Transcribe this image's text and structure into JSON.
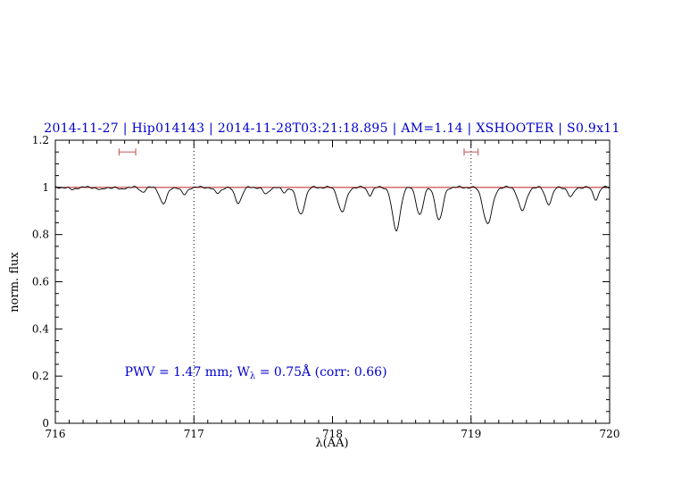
{
  "chart_data": {
    "type": "line",
    "title": "2014-11-27 | Hip014143 | 2014-11-28T03:21:18.895 | AM=1.14 | XSHOOTER | S0.9x11",
    "title_color": "#0000cd",
    "xlabel": "λ(AA)",
    "ylabel": "norm. flux",
    "xlim": [
      716,
      720
    ],
    "ylim": [
      0,
      1.2
    ],
    "x_ticks": [
      716,
      717,
      718,
      719,
      720
    ],
    "y_ticks": [
      0,
      0.2,
      0.4,
      0.6,
      0.8,
      1,
      1.2
    ],
    "x_minor_step": 0.1,
    "y_minor_step": 0.05,
    "grid": "off",
    "dotted_vlines": [
      717,
      719
    ],
    "continuum": {
      "y": 1.0,
      "color": "#bb2222"
    },
    "marker_color": "#cc6666",
    "band_markers": [
      {
        "x_center": 716.52,
        "half_width": 0.06,
        "y": 1.15
      },
      {
        "x_center": 719.0,
        "half_width": 0.05,
        "y": 1.15
      }
    ],
    "annotation": {
      "prefix": "PWV = 1.47 mm; W",
      "subscript": "λ",
      "suffix": " = 0.75Å (corr: 0.66)",
      "color": "#0000cd",
      "x": 716.5,
      "y": 0.2
    },
    "spectrum": {
      "color": "#000000",
      "continuum_level": 1.0,
      "sample_step": 0.008,
      "noise_amplitude": 0.003,
      "absorption_lines": [
        {
          "center": 716.12,
          "depth": 0.01,
          "sigma": 0.02
        },
        {
          "center": 716.33,
          "depth": 0.012,
          "sigma": 0.02
        },
        {
          "center": 716.47,
          "depth": 0.01,
          "sigma": 0.018
        },
        {
          "center": 716.63,
          "depth": 0.018,
          "sigma": 0.02
        },
        {
          "center": 716.78,
          "depth": 0.07,
          "sigma": 0.025
        },
        {
          "center": 716.93,
          "depth": 0.032,
          "sigma": 0.02
        },
        {
          "center": 717.17,
          "depth": 0.026,
          "sigma": 0.022
        },
        {
          "center": 717.32,
          "depth": 0.065,
          "sigma": 0.025
        },
        {
          "center": 717.52,
          "depth": 0.03,
          "sigma": 0.02
        },
        {
          "center": 717.65,
          "depth": 0.022,
          "sigma": 0.018
        },
        {
          "center": 717.77,
          "depth": 0.115,
          "sigma": 0.028
        },
        {
          "center": 718.07,
          "depth": 0.105,
          "sigma": 0.028
        },
        {
          "center": 718.27,
          "depth": 0.032,
          "sigma": 0.018
        },
        {
          "center": 718.46,
          "depth": 0.185,
          "sigma": 0.028
        },
        {
          "center": 718.63,
          "depth": 0.115,
          "sigma": 0.025
        },
        {
          "center": 718.77,
          "depth": 0.14,
          "sigma": 0.026
        },
        {
          "center": 719.12,
          "depth": 0.155,
          "sigma": 0.032
        },
        {
          "center": 719.37,
          "depth": 0.1,
          "sigma": 0.028
        },
        {
          "center": 719.56,
          "depth": 0.07,
          "sigma": 0.024
        },
        {
          "center": 719.72,
          "depth": 0.042,
          "sigma": 0.02
        },
        {
          "center": 719.9,
          "depth": 0.05,
          "sigma": 0.02
        }
      ]
    }
  }
}
